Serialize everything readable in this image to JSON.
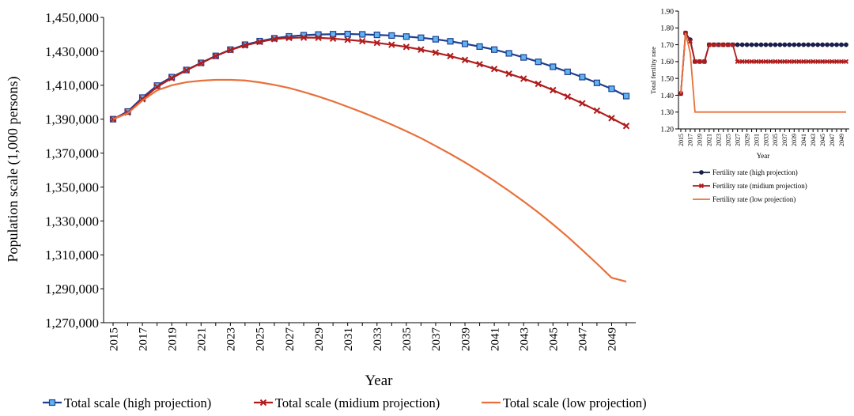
{
  "chart_data": [
    {
      "type": "line",
      "title": "",
      "xlabel": "Year",
      "ylabel": "Population scale (1,000 persons)",
      "ylim": [
        1270000,
        1450000
      ],
      "yticks": [
        "1,270,000",
        "1,290,000",
        "1,310,000",
        "1,330,000",
        "1,350,000",
        "1,370,000",
        "1,390,000",
        "1,410,000",
        "1,430,000",
        "1,450,000"
      ],
      "xticks": [
        "2015",
        "2017",
        "2019",
        "2021",
        "2023",
        "2025",
        "2027",
        "2029",
        "2031",
        "2033",
        "2035",
        "2037",
        "2039",
        "2041",
        "2043",
        "2045",
        "2047",
        "2049"
      ],
      "x": [
        2015,
        2016,
        2017,
        2018,
        2019,
        2020,
        2021,
        2022,
        2023,
        2024,
        2025,
        2026,
        2027,
        2028,
        2029,
        2030,
        2031,
        2032,
        2033,
        2034,
        2035,
        2036,
        2037,
        2038,
        2039,
        2040,
        2041,
        2042,
        2043,
        2044,
        2045,
        2046,
        2047,
        2048,
        2049,
        2050
      ],
      "grid": false,
      "legend_position": "bottom",
      "series": [
        {
          "name": "Total scale (high projection)",
          "color": "#1f3f8f",
          "marker": "square",
          "values": [
            1390000,
            1394500,
            1402700,
            1409800,
            1414800,
            1419000,
            1423200,
            1427300,
            1431000,
            1433900,
            1436000,
            1437700,
            1438800,
            1439500,
            1439900,
            1440100,
            1440200,
            1440000,
            1439700,
            1439300,
            1438700,
            1438000,
            1437100,
            1435900,
            1434400,
            1432800,
            1431000,
            1428800,
            1426400,
            1423800,
            1420900,
            1417900,
            1414800,
            1411400,
            1407900,
            1403600
          ]
        },
        {
          "name": "Total scale (midium projection)",
          "color": "#b01c1c",
          "marker": "x",
          "values": [
            1390000,
            1393900,
            1401800,
            1409000,
            1414200,
            1418800,
            1423000,
            1427200,
            1430800,
            1433500,
            1435500,
            1437200,
            1437900,
            1438100,
            1438000,
            1437500,
            1436800,
            1436000,
            1435000,
            1433900,
            1432600,
            1431000,
            1429200,
            1427200,
            1424900,
            1422400,
            1419600,
            1416800,
            1413900,
            1410800,
            1407100,
            1403300,
            1399300,
            1395000,
            1390600,
            1386000
          ]
        },
        {
          "name": "Total scale (low projection)",
          "color": "#e8703a",
          "marker": "none",
          "values": [
            1390000,
            1393500,
            1401000,
            1407000,
            1410000,
            1411800,
            1412700,
            1413200,
            1413200,
            1412800,
            1411700,
            1410200,
            1408400,
            1406000,
            1403400,
            1400500,
            1397300,
            1394000,
            1390500,
            1386800,
            1382900,
            1378800,
            1374200,
            1369500,
            1364500,
            1359200,
            1353600,
            1347700,
            1341500,
            1335000,
            1328000,
            1320700,
            1312800,
            1304800,
            1296500,
            1294200
          ]
        }
      ]
    },
    {
      "type": "line",
      "title": "",
      "xlabel": "Year",
      "ylabel": "Total fertility rate",
      "ylim": [
        1.2,
        1.9
      ],
      "yticks": [
        "1.20",
        "1.30",
        "1.40",
        "1.50",
        "1.60",
        "1.70",
        "1.80",
        "1.90"
      ],
      "xticks": [
        "2015",
        "2017",
        "2019",
        "2021",
        "2023",
        "2025",
        "2027",
        "2029",
        "2031",
        "2033",
        "2035",
        "2037",
        "2039",
        "2041",
        "2043",
        "2045",
        "2047",
        "2049"
      ],
      "x": [
        2015,
        2016,
        2017,
        2018,
        2019,
        2020,
        2021,
        2022,
        2023,
        2024,
        2025,
        2026,
        2027,
        2028,
        2029,
        2030,
        2031,
        2032,
        2033,
        2034,
        2035,
        2036,
        2037,
        2038,
        2039,
        2040,
        2041,
        2042,
        2043,
        2044,
        2045,
        2046,
        2047,
        2048,
        2049,
        2050
      ],
      "grid": false,
      "legend_position": "bottom",
      "series": [
        {
          "name": "Fertility rate (high projection)",
          "color": "#1a1f4a",
          "marker": "circle",
          "values": [
            1.41,
            1.77,
            1.73,
            1.6,
            1.6,
            1.6,
            1.7,
            1.7,
            1.7,
            1.7,
            1.7,
            1.7,
            1.7,
            1.7,
            1.7,
            1.7,
            1.7,
            1.7,
            1.7,
            1.7,
            1.7,
            1.7,
            1.7,
            1.7,
            1.7,
            1.7,
            1.7,
            1.7,
            1.7,
            1.7,
            1.7,
            1.7,
            1.7,
            1.7,
            1.7,
            1.7
          ]
        },
        {
          "name": "Fertility rate (midium projection)",
          "color": "#b01c1c",
          "marker": "x",
          "values": [
            1.41,
            1.77,
            1.72,
            1.6,
            1.6,
            1.6,
            1.7,
            1.7,
            1.7,
            1.7,
            1.7,
            1.7,
            1.6,
            1.6,
            1.6,
            1.6,
            1.6,
            1.6,
            1.6,
            1.6,
            1.6,
            1.6,
            1.6,
            1.6,
            1.6,
            1.6,
            1.6,
            1.6,
            1.6,
            1.6,
            1.6,
            1.6,
            1.6,
            1.6,
            1.6,
            1.6
          ]
        },
        {
          "name": "Fertility rate (low projection)",
          "color": "#e8703a",
          "marker": "none",
          "values": [
            1.41,
            1.77,
            1.65,
            1.3,
            1.3,
            1.3,
            1.3,
            1.3,
            1.3,
            1.3,
            1.3,
            1.3,
            1.3,
            1.3,
            1.3,
            1.3,
            1.3,
            1.3,
            1.3,
            1.3,
            1.3,
            1.3,
            1.3,
            1.3,
            1.3,
            1.3,
            1.3,
            1.3,
            1.3,
            1.3,
            1.3,
            1.3,
            1.3,
            1.3,
            1.3,
            1.3
          ]
        }
      ]
    }
  ]
}
